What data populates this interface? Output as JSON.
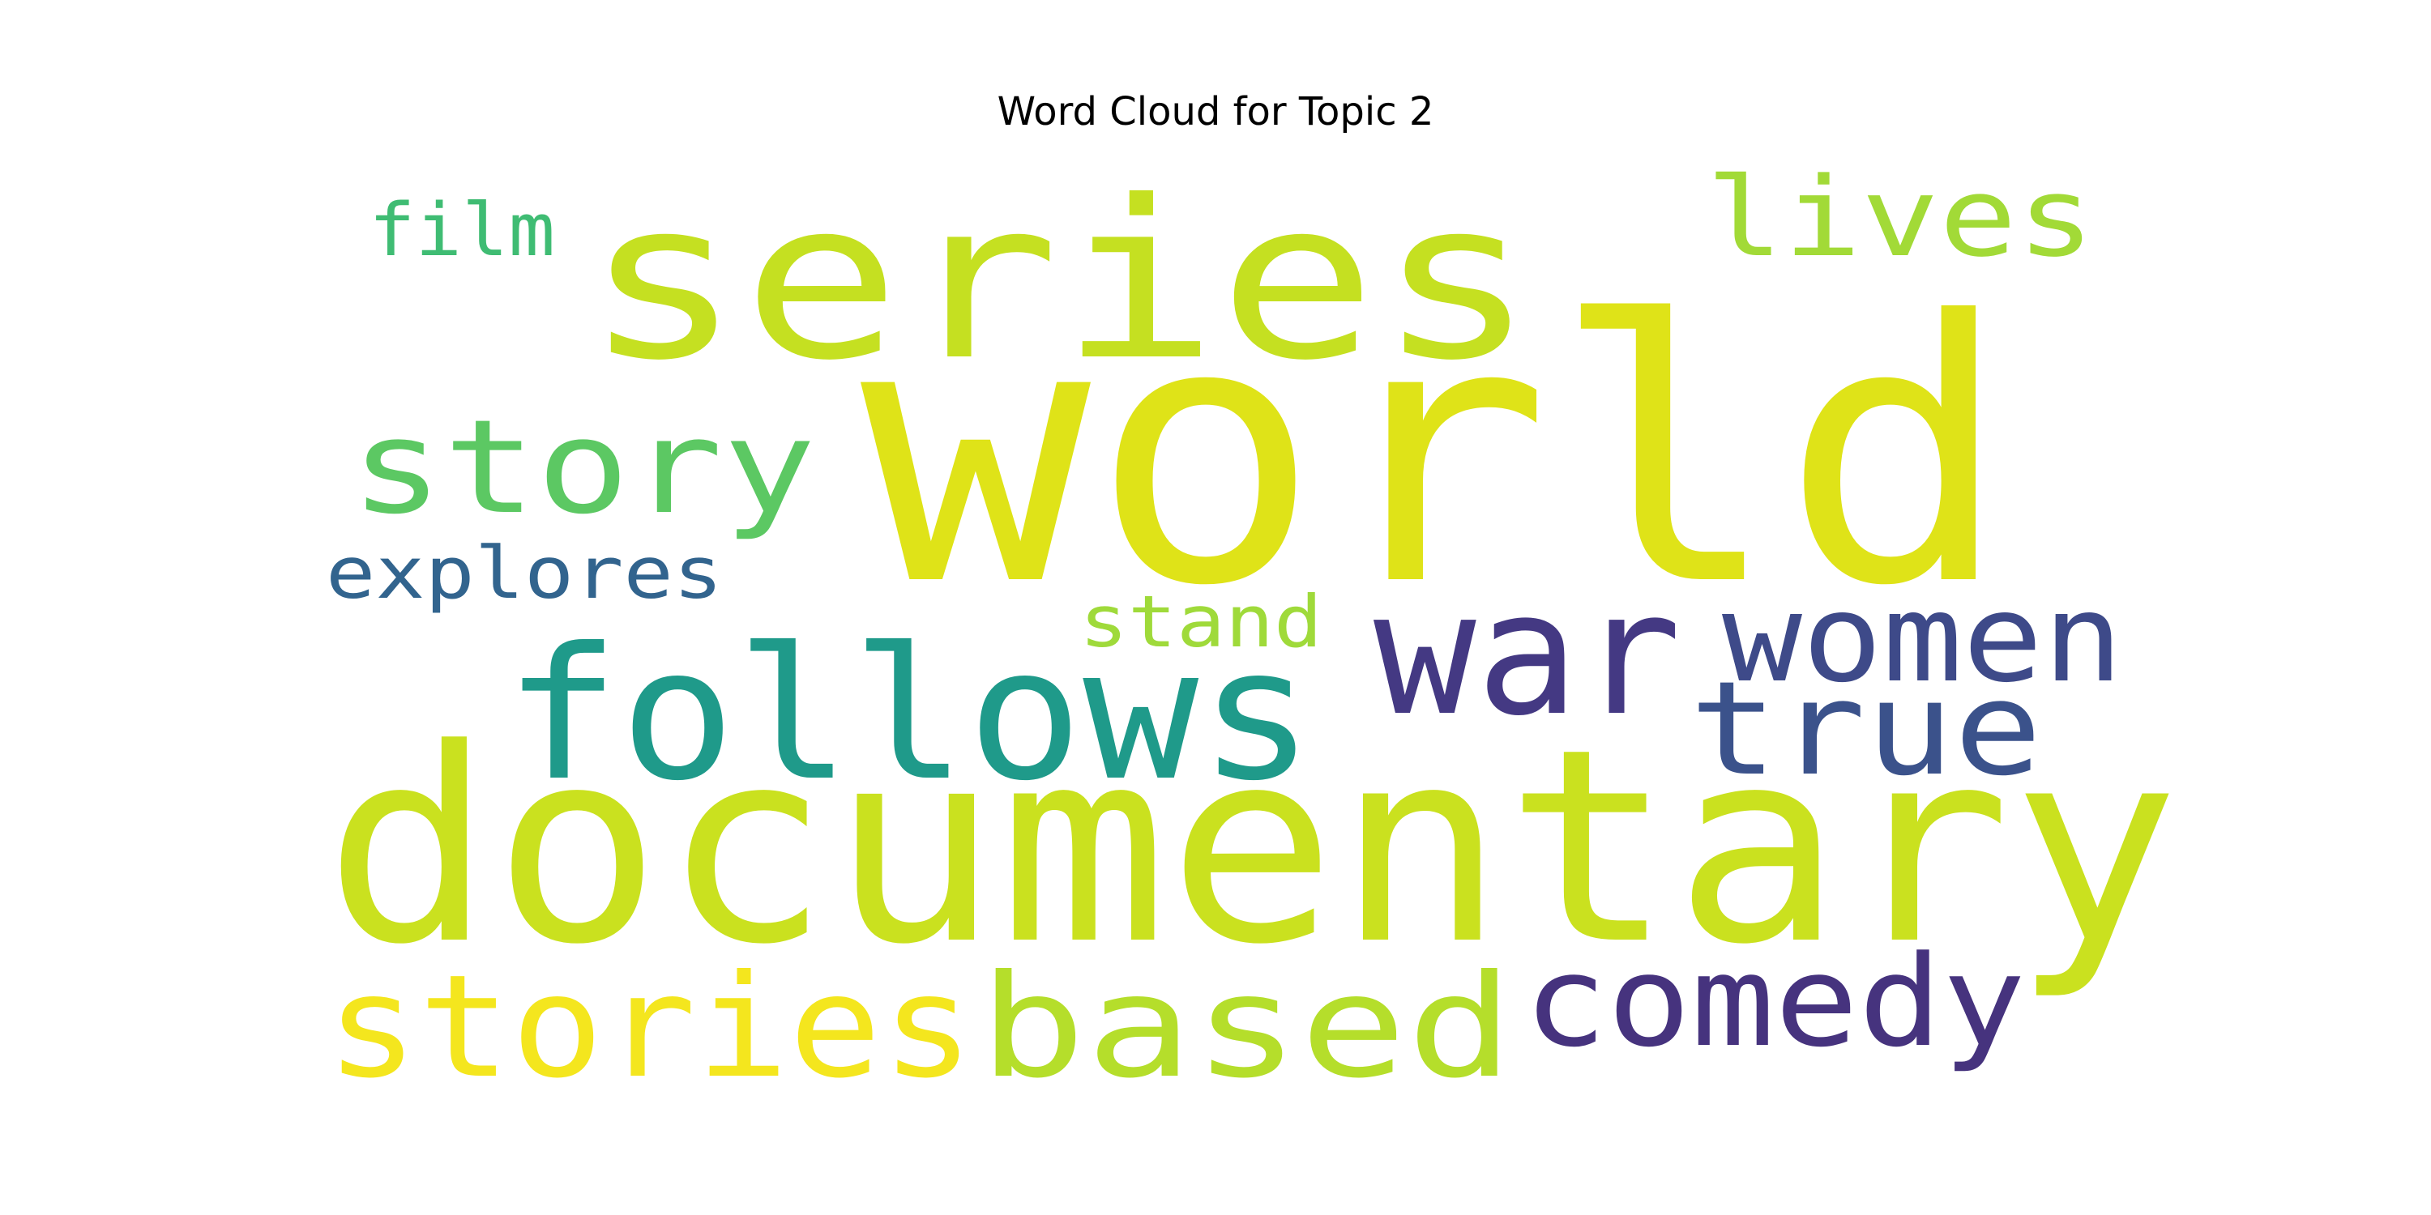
{
  "chart_data": {
    "type": "wordcloud",
    "title": "Word Cloud for Topic 2",
    "colormap": "viridis",
    "background": "#ffffff",
    "words": [
      {
        "text": "world",
        "color": "#dfe318"
      },
      {
        "text": "documentary",
        "color": "#cae11f"
      },
      {
        "text": "series",
        "color": "#c5e021"
      },
      {
        "text": "follows",
        "color": "#1f9a8a"
      },
      {
        "text": "war",
        "color": "#443983"
      },
      {
        "text": "stories",
        "color": "#f4e61e"
      },
      {
        "text": "based",
        "color": "#b5de2b"
      },
      {
        "text": "comedy",
        "color": "#46337e"
      },
      {
        "text": "true",
        "color": "#3b528b"
      },
      {
        "text": "women",
        "color": "#3e4a89"
      },
      {
        "text": "story",
        "color": "#5cc863"
      },
      {
        "text": "lives",
        "color": "#a2da37"
      },
      {
        "text": "film",
        "color": "#3fbc73"
      },
      {
        "text": "explores",
        "color": "#32648e"
      },
      {
        "text": "stand",
        "color": "#9fda3a"
      }
    ]
  }
}
